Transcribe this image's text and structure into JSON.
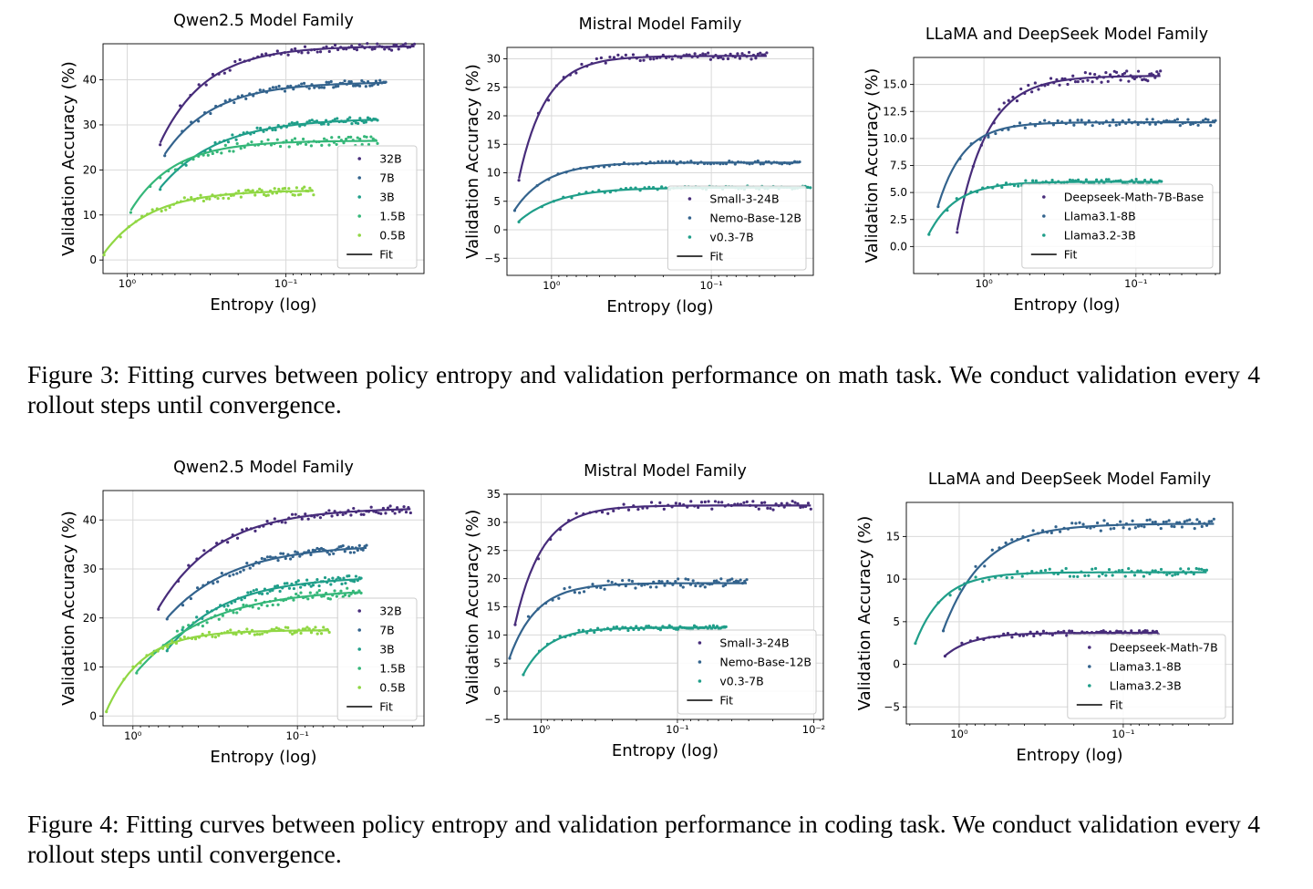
{
  "figures": [
    {
      "caption": "Figure 3: Fitting curves between policy entropy and validation performance on math task. We conduct validation every 4 rollout steps until convergence."
    },
    {
      "caption": "Figure 4: Fitting curves between policy entropy and validation performance in coding task. We conduct validation every 4 rollout steps until convergence."
    }
  ],
  "chart_data": [
    {
      "type": "scatter",
      "title": "Qwen2.5 Model Family",
      "xlabel": "Entropy (log)",
      "ylabel": "Validation Accuracy (%)",
      "x_scale": "log-reversed",
      "xlim": [
        1.42,
        0.0135
      ],
      "ylim": [
        -3,
        48
      ],
      "xticks": [
        {
          "value": 1,
          "label": "10⁰"
        },
        {
          "value": 0.1,
          "label": "10⁻¹"
        }
      ],
      "yticks": [
        0,
        10,
        20,
        30,
        40
      ],
      "grid": true,
      "legend_position": "lower-right",
      "fit_label": "Fit",
      "series": [
        {
          "name": "32B",
          "color": "#472c7a",
          "fit_a": 47.5,
          "fit_b": 26.0,
          "fit_k": 1.5,
          "x_start": 0.62,
          "x_end": 0.0155,
          "noise": 0.8
        },
        {
          "name": "7B",
          "color": "#33638d",
          "fit_a": 39.5,
          "fit_b": 23.5,
          "fit_k": 1.4,
          "x_start": 0.58,
          "x_end": 0.0235,
          "noise": 0.7
        },
        {
          "name": "3B",
          "color": "#1f9e89",
          "fit_a": 31.5,
          "fit_b": 16.0,
          "fit_k": 1.2,
          "x_start": 0.62,
          "x_end": 0.0265,
          "noise": 0.7
        },
        {
          "name": "1.5B",
          "color": "#35b779",
          "fit_a": 26.5,
          "fit_b": 11.0,
          "fit_k": 1.6,
          "x_start": 0.95,
          "x_end": 0.0265,
          "noise": 1.0
        },
        {
          "name": "0.5B",
          "color": "#90d743",
          "fit_a": 15.5,
          "fit_b": 1.5,
          "fit_k": 1.5,
          "x_start": 1.4,
          "x_end": 0.067,
          "noise": 0.9
        }
      ]
    },
    {
      "type": "scatter",
      "title": "Mistral Model Family",
      "xlabel": "Entropy (log)",
      "ylabel": "Validation Accuracy (%)",
      "x_scale": "log-reversed",
      "xlim": [
        1.9,
        0.023
      ],
      "ylim": [
        -8,
        32
      ],
      "xticks": [
        {
          "value": 1,
          "label": "10⁰"
        },
        {
          "value": 0.1,
          "label": "10⁻¹"
        }
      ],
      "yticks": [
        -5,
        0,
        5,
        10,
        15,
        20,
        25,
        30
      ],
      "grid": true,
      "legend_position": "lower-right",
      "fit_label": "Fit",
      "series": [
        {
          "name": "Small-3-24B",
          "color": "#472c7a",
          "fit_a": 30.5,
          "fit_b": 9.0,
          "fit_k": 2.6,
          "x_start": 1.6,
          "x_end": 0.045,
          "noise": 0.7
        },
        {
          "name": "Nemo-Base-12B",
          "color": "#33638d",
          "fit_a": 11.8,
          "fit_b": 3.5,
          "fit_k": 2.2,
          "x_start": 1.7,
          "x_end": 0.028,
          "noise": 0.3
        },
        {
          "name": "v0.3-7B",
          "color": "#1f9e89",
          "fit_a": 7.4,
          "fit_b": 1.5,
          "fit_k": 1.8,
          "x_start": 1.6,
          "x_end": 0.024,
          "noise": 0.3
        }
      ]
    },
    {
      "type": "scatter",
      "title": "LLaMA and DeepSeek Model Family",
      "xlabel": "Entropy (log)",
      "ylabel": "Validation Accuracy (%)",
      "x_scale": "log-reversed",
      "xlim": [
        2.9,
        0.028
      ],
      "ylim": [
        -2.5,
        17.5
      ],
      "xticks": [
        {
          "value": 1,
          "label": "10⁰"
        },
        {
          "value": 0.1,
          "label": "10⁻¹"
        }
      ],
      "yticks": [
        0.0,
        2.5,
        5.0,
        7.5,
        10.0,
        12.5,
        15.0
      ],
      "ytick_decimals": 1,
      "grid": true,
      "legend_position": "lower-right",
      "fit_label": "Fit",
      "series": [
        {
          "name": "Deepseek-Math-7B-Base",
          "color": "#472c7a",
          "fit_a": 15.8,
          "fit_b": 1.5,
          "fit_k": 2.2,
          "x_start": 1.5,
          "x_end": 0.069,
          "noise": 0.5
        },
        {
          "name": "Llama3.1-8B",
          "color": "#33638d",
          "fit_a": 11.5,
          "fit_b": 3.8,
          "fit_k": 2.6,
          "x_start": 2.0,
          "x_end": 0.03,
          "noise": 0.3
        },
        {
          "name": "Llama3.2-3B",
          "color": "#1f9e89",
          "fit_a": 6.0,
          "fit_b": 1.2,
          "fit_k": 2.4,
          "x_start": 2.3,
          "x_end": 0.068,
          "noise": 0.25
        }
      ]
    },
    {
      "type": "scatter",
      "title": "Qwen2.5 Model Family",
      "xlabel": "Entropy (log)",
      "ylabel": "Validation Accuracy (%)",
      "x_scale": "log-reversed",
      "xlim": [
        1.52,
        0.017
      ],
      "ylim": [
        -2,
        46
      ],
      "xticks": [
        {
          "value": 1,
          "label": "10⁰"
        },
        {
          "value": 0.1,
          "label": "10⁻¹"
        }
      ],
      "yticks": [
        0,
        10,
        20,
        30,
        40
      ],
      "grid": true,
      "legend_position": "lower-right",
      "fit_label": "Fit",
      "series": [
        {
          "name": "32B",
          "color": "#472c7a",
          "fit_a": 42.5,
          "fit_b": 22.0,
          "fit_k": 1.2,
          "x_start": 0.7,
          "x_end": 0.0205,
          "noise": 0.8
        },
        {
          "name": "7B",
          "color": "#33638d",
          "fit_a": 35.0,
          "fit_b": 20.0,
          "fit_k": 1.1,
          "x_start": 0.62,
          "x_end": 0.038,
          "noise": 0.8
        },
        {
          "name": "3B",
          "color": "#1f9e89",
          "fit_a": 28.5,
          "fit_b": 13.5,
          "fit_k": 1.2,
          "x_start": 0.62,
          "x_end": 0.041,
          "noise": 0.8
        },
        {
          "name": "1.5B",
          "color": "#35b779",
          "fit_a": 26.0,
          "fit_b": 9.0,
          "fit_k": 1.0,
          "x_start": 0.95,
          "x_end": 0.041,
          "noise": 1.0
        },
        {
          "name": "0.5B",
          "color": "#90d743",
          "fit_a": 17.5,
          "fit_b": 1.0,
          "fit_k": 2.0,
          "x_start": 1.45,
          "x_end": 0.064,
          "noise": 0.7
        }
      ]
    },
    {
      "type": "scatter",
      "title": "Mistral Model Family",
      "xlabel": "Entropy (log)",
      "ylabel": "Validation Accuracy (%)",
      "x_scale": "log-reversed",
      "xlim": [
        1.78,
        0.0085
      ],
      "ylim": [
        -5,
        35
      ],
      "xticks": [
        {
          "value": 1,
          "label": "10⁰"
        },
        {
          "value": 0.1,
          "label": "10⁻¹"
        },
        {
          "value": 0.01,
          "label": "10⁻²"
        }
      ],
      "yticks": [
        -5,
        0,
        5,
        10,
        15,
        20,
        25,
        30,
        35
      ],
      "grid": true,
      "legend_position": "lower-right",
      "fit_label": "Fit",
      "series": [
        {
          "name": "Small-3-24B",
          "color": "#472c7a",
          "fit_a": 33.0,
          "fit_b": 12.0,
          "fit_k": 2.2,
          "x_start": 1.55,
          "x_end": 0.0105,
          "noise": 0.8
        },
        {
          "name": "Nemo-Base-12B",
          "color": "#33638d",
          "fit_a": 19.2,
          "fit_b": 6.0,
          "fit_k": 2.2,
          "x_start": 1.7,
          "x_end": 0.031,
          "noise": 0.8
        },
        {
          "name": "v0.3-7B",
          "color": "#1f9e89",
          "fit_a": 11.3,
          "fit_b": 3.0,
          "fit_k": 2.4,
          "x_start": 1.35,
          "x_end": 0.044,
          "noise": 0.4
        }
      ]
    },
    {
      "type": "scatter",
      "title": "LLaMA and DeepSeek Model Family",
      "xlabel": "Entropy (log)",
      "ylabel": "Validation Accuracy (%)",
      "x_scale": "log-reversed",
      "xlim": [
        2.1,
        0.0215
      ],
      "ylim": [
        -7,
        19
      ],
      "xticks": [
        {
          "value": 1,
          "label": "10⁰"
        },
        {
          "value": 0.1,
          "label": "10⁻¹"
        }
      ],
      "yticks": [
        -5,
        0,
        5,
        10,
        15
      ],
      "grid": true,
      "legend_position": "lower-right",
      "fit_label": "Fit",
      "series": [
        {
          "name": "Deepseek-Math-7B",
          "color": "#472c7a",
          "fit_a": 3.7,
          "fit_b": 1.0,
          "fit_k": 2.6,
          "x_start": 1.22,
          "x_end": 0.061,
          "noise": 0.3
        },
        {
          "name": "Llama3.1-8B",
          "color": "#33638d",
          "fit_a": 16.5,
          "fit_b": 4.0,
          "fit_k": 1.8,
          "x_start": 1.25,
          "x_end": 0.028,
          "noise": 0.6
        },
        {
          "name": "Llama3.2-3B",
          "color": "#1f9e89",
          "fit_a": 10.8,
          "fit_b": 2.5,
          "fit_k": 2.6,
          "x_start": 1.85,
          "x_end": 0.031,
          "noise": 0.5
        }
      ]
    }
  ]
}
